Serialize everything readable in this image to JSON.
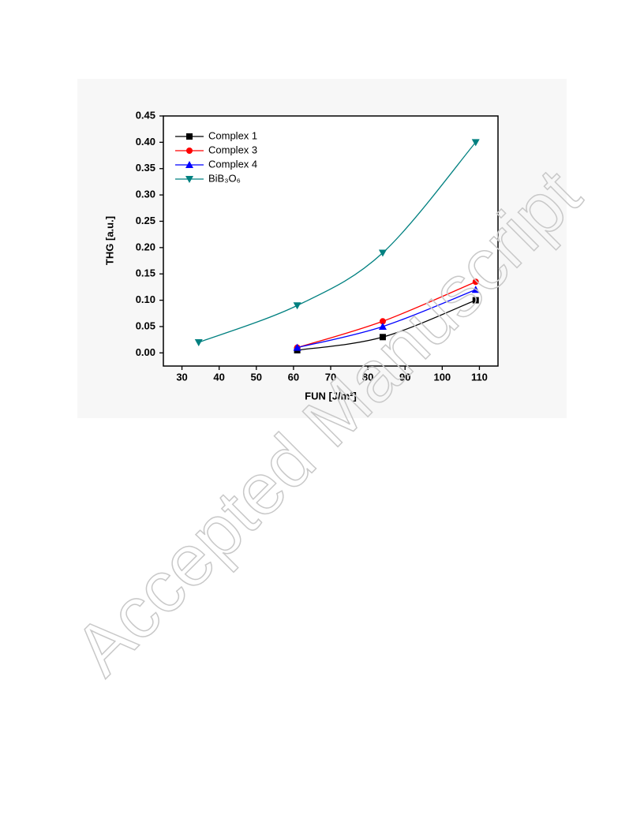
{
  "chart_data": {
    "type": "line",
    "xlabel": "FUN [J/m²]",
    "ylabel": "THG [a.u.]",
    "xlim": [
      25,
      115
    ],
    "ylim": [
      -0.025,
      0.45
    ],
    "xticks": [
      30,
      40,
      50,
      60,
      70,
      80,
      90,
      100,
      110
    ],
    "yticks": [
      {
        "value": 0,
        "label": "0.00"
      },
      {
        "value": 0.05,
        "label": "0.05"
      },
      {
        "value": 0.1,
        "label": "0.10"
      },
      {
        "value": 0.15,
        "label": "0.15"
      },
      {
        "value": 0.2,
        "label": "0.20"
      },
      {
        "value": 0.25,
        "label": "0.25"
      },
      {
        "value": 0.3,
        "label": "0.30"
      },
      {
        "value": 0.35,
        "label": "0.35"
      },
      {
        "value": 0.4,
        "label": "0.40"
      },
      {
        "value": 0.45,
        "label": "0.45"
      }
    ],
    "legend": "upper left",
    "series": [
      {
        "name": "Complex 1",
        "color": "#000000",
        "marker": "square",
        "x": [
          61,
          84,
          109
        ],
        "values": [
          0.005,
          0.03,
          0.1
        ]
      },
      {
        "name": "Complex 3",
        "color": "#ff0000",
        "marker": "circle",
        "x": [
          61,
          84,
          109
        ],
        "values": [
          0.01,
          0.06,
          0.135
        ]
      },
      {
        "name": "Complex 4",
        "color": "#0000ff",
        "marker": "triangle-up",
        "x": [
          61,
          84,
          109
        ],
        "values": [
          0.01,
          0.05,
          0.12
        ]
      },
      {
        "name": "BiB₃O₆",
        "color": "#008080",
        "marker": "triangle-down",
        "x": [
          34.5,
          61,
          84,
          109
        ],
        "values": [
          0.02,
          0.09,
          0.19,
          0.4
        ]
      }
    ]
  },
  "watermark": "Accepted Manuscript"
}
